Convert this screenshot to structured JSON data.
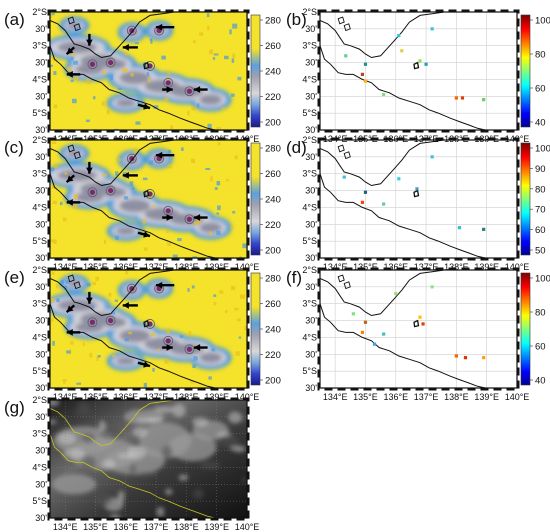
{
  "panels": [
    {
      "label": "(a)",
      "type": "brightness-temperature"
    },
    {
      "label": "(b)",
      "type": "probability-points"
    },
    {
      "label": "(c)",
      "type": "brightness-temperature"
    },
    {
      "label": "(d)",
      "type": "probability-points"
    },
    {
      "label": "(e)",
      "type": "brightness-temperature"
    },
    {
      "label": "(f)",
      "type": "probability-points"
    },
    {
      "label": "(g)",
      "type": "grayscale-image"
    }
  ],
  "lon_labels": [
    "134°E",
    "135°E",
    "136°E",
    "137°E",
    "138°E",
    "139°E",
    "140°E"
  ],
  "lat_labels": [
    "2°S",
    "30'",
    "3°S",
    "30'",
    "4°S",
    "30'",
    "5°S",
    "30'"
  ],
  "lat_labels_full": [
    "2°S",
    "30'",
    "3°S",
    "30'",
    "4°S",
    "30'",
    "5°S",
    "30'"
  ],
  "colorbars": {
    "temp": {
      "ticks": [
        "280",
        "260",
        "240",
        "220",
        "200"
      ]
    },
    "b": {
      "ticks": [
        "100",
        "80",
        "60",
        "40"
      ]
    },
    "d": {
      "ticks": [
        "100",
        "90",
        "80",
        "70",
        "60",
        "50"
      ]
    },
    "f": {
      "ticks": [
        "100",
        "80",
        "60",
        "40"
      ]
    }
  },
  "colors": {
    "land_warm": "#f5e22a",
    "cloud_cold": "#8f8fa3",
    "coast": "#111111"
  }
}
